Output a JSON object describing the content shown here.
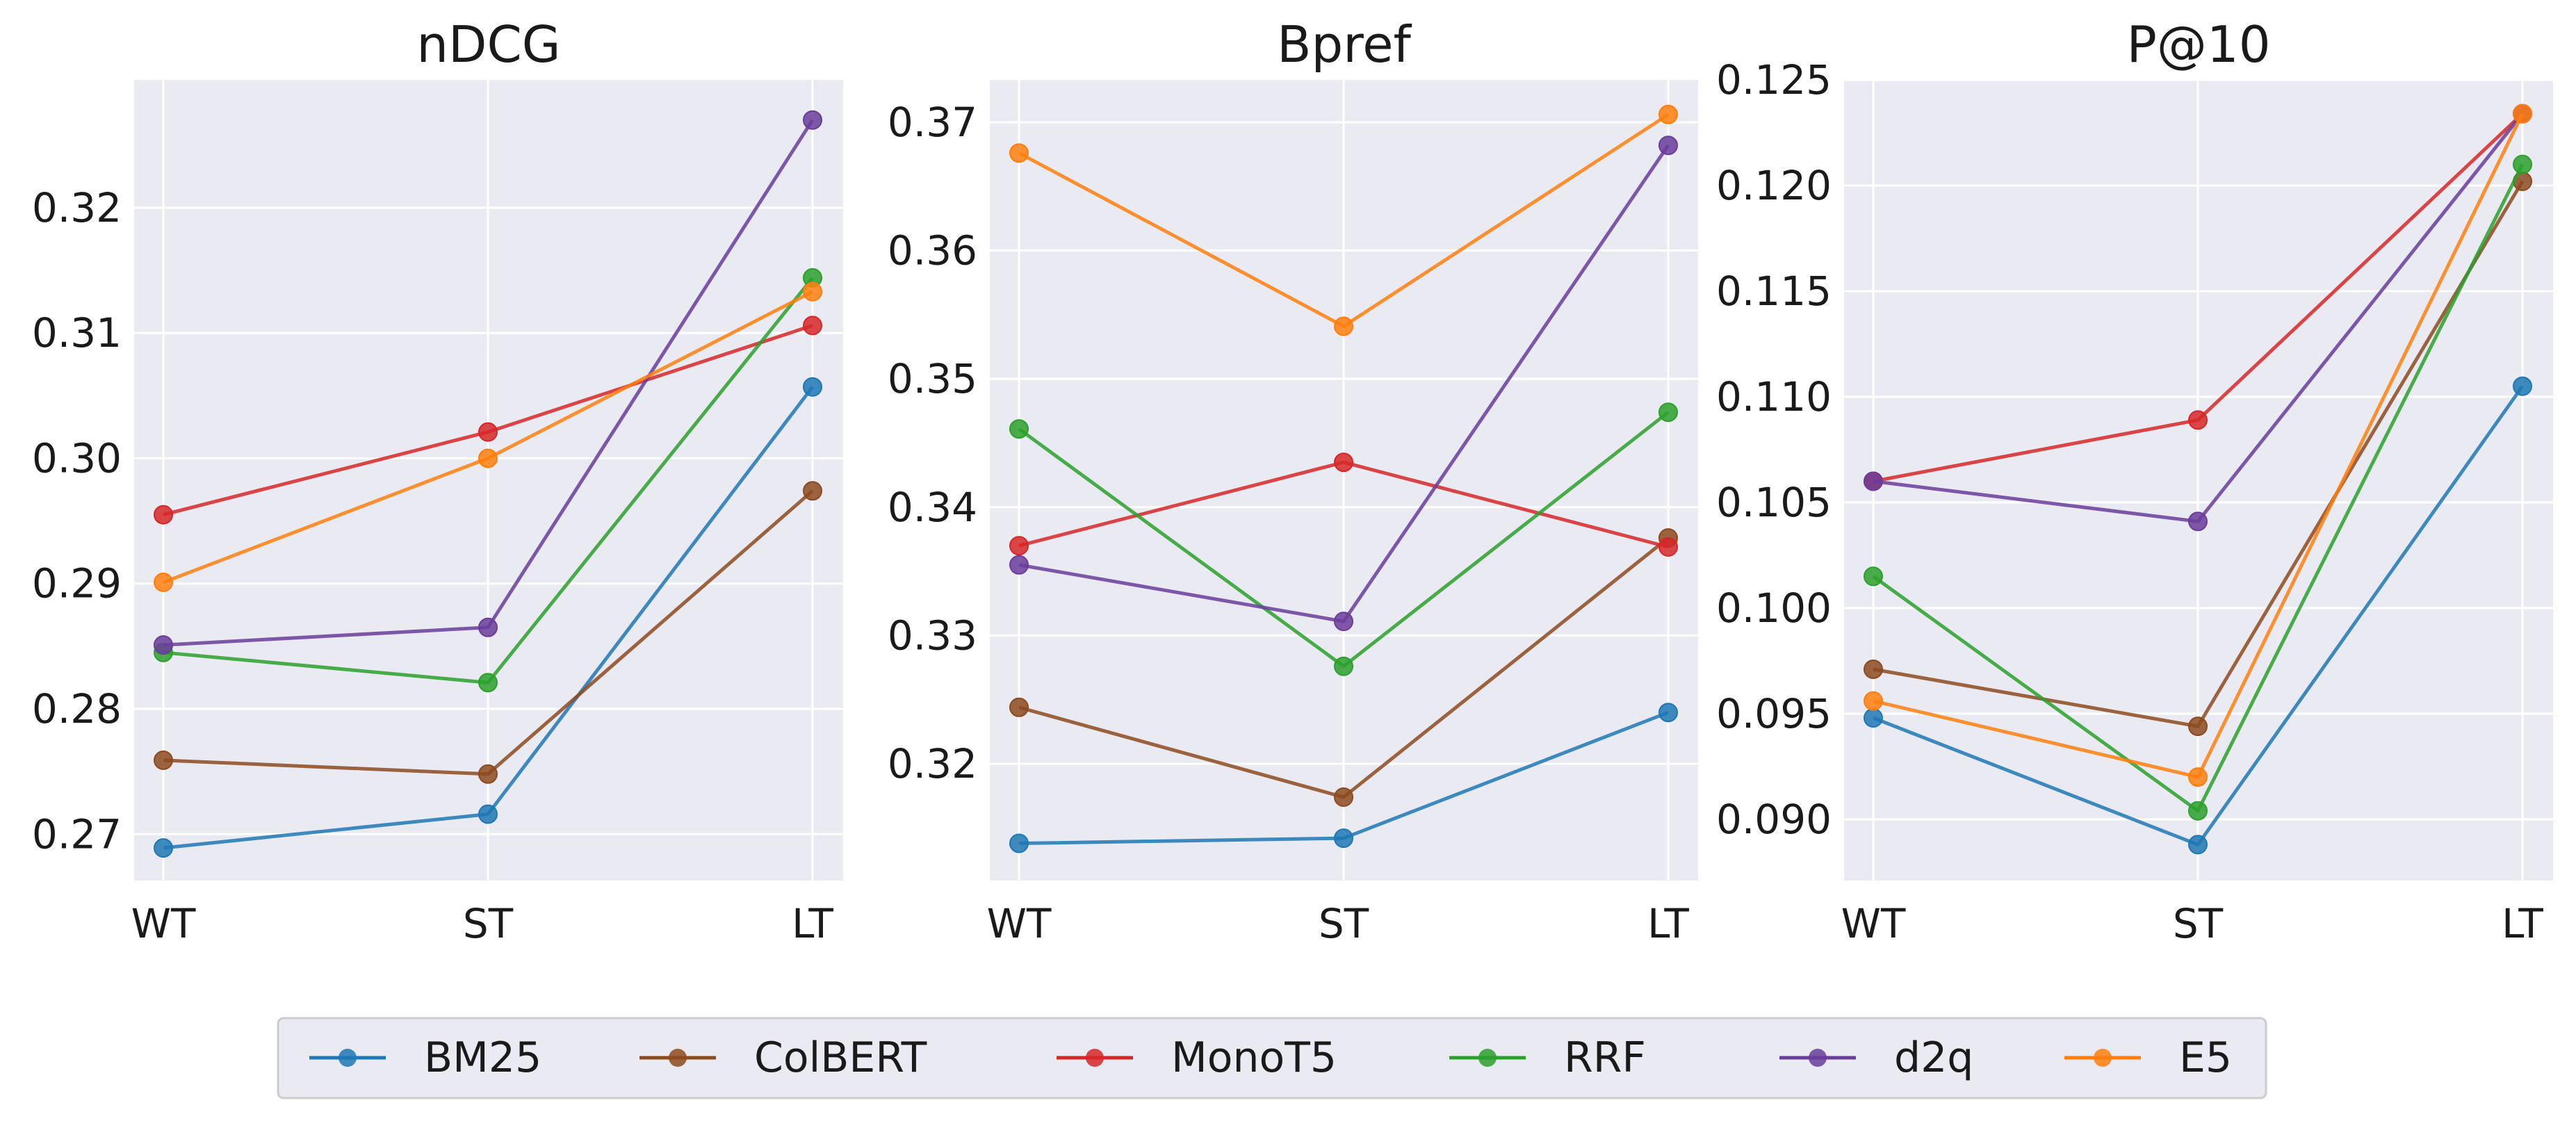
{
  "chart_data": [
    {
      "type": "line",
      "title": "nDCG",
      "categories": [
        "WT",
        "ST",
        "LT"
      ],
      "ylim": [
        0.2663,
        0.3302
      ],
      "yticks": [
        0.27,
        0.28,
        0.29,
        0.3,
        0.31,
        0.32
      ],
      "ytick_labels": [
        "0.27",
        "0.28",
        "0.29",
        "0.30",
        "0.31",
        "0.32"
      ],
      "series": [
        {
          "name": "BM25",
          "values": [
            0.2689,
            0.2716,
            0.3057
          ]
        },
        {
          "name": "ColBERT",
          "values": [
            0.2759,
            0.2748,
            0.2974
          ]
        },
        {
          "name": "MonoT5",
          "values": [
            0.2955,
            0.3021,
            0.3106
          ]
        },
        {
          "name": "RRF",
          "values": [
            0.2845,
            0.2821,
            0.3144
          ]
        },
        {
          "name": "d2q",
          "values": [
            0.2851,
            0.2865,
            0.327
          ]
        },
        {
          "name": "E5",
          "values": [
            0.2901,
            0.3,
            0.3133
          ]
        }
      ]
    },
    {
      "type": "line",
      "title": "Bpref",
      "categories": [
        "WT",
        "ST",
        "LT"
      ],
      "ylim": [
        0.3109,
        0.3733
      ],
      "yticks": [
        0.32,
        0.33,
        0.34,
        0.35,
        0.36,
        0.37
      ],
      "ytick_labels": [
        "0.32",
        "0.33",
        "0.34",
        "0.35",
        "0.36",
        "0.37"
      ],
      "series": [
        {
          "name": "BM25",
          "values": [
            0.3138,
            0.3142,
            0.324
          ]
        },
        {
          "name": "ColBERT",
          "values": [
            0.3244,
            0.3174,
            0.3376
          ]
        },
        {
          "name": "MonoT5",
          "values": [
            0.337,
            0.3435,
            0.3369
          ]
        },
        {
          "name": "RRF",
          "values": [
            0.3461,
            0.3276,
            0.3474
          ]
        },
        {
          "name": "d2q",
          "values": [
            0.3355,
            0.3311,
            0.3682
          ]
        },
        {
          "name": "E5",
          "values": [
            0.3676,
            0.3541,
            0.3706
          ]
        }
      ]
    },
    {
      "type": "line",
      "title": "P@10",
      "categories": [
        "WT",
        "ST",
        "LT"
      ],
      "ylim": [
        0.0871,
        0.125
      ],
      "yticks": [
        0.09,
        0.095,
        0.1,
        0.105,
        0.11,
        0.115,
        0.12,
        0.125
      ],
      "ytick_labels": [
        "0.090",
        "0.095",
        "0.100",
        "0.105",
        "0.110",
        "0.115",
        "0.120",
        "0.125"
      ],
      "series": [
        {
          "name": "BM25",
          "values": [
            0.0948,
            0.0888,
            0.1105
          ]
        },
        {
          "name": "ColBERT",
          "values": [
            0.0971,
            0.0944,
            0.1202
          ]
        },
        {
          "name": "MonoT5",
          "values": [
            0.106,
            0.1089,
            0.1234
          ]
        },
        {
          "name": "RRF",
          "values": [
            0.1015,
            0.0904,
            0.121
          ]
        },
        {
          "name": "d2q",
          "values": [
            0.106,
            0.1041,
            0.1234
          ]
        },
        {
          "name": "E5",
          "values": [
            0.0956,
            0.092,
            0.1234
          ]
        }
      ]
    }
  ],
  "legend": {
    "items": [
      {
        "name": "BM25",
        "color": "#1f77b4"
      },
      {
        "name": "ColBERT",
        "color": "#8c4a1f"
      },
      {
        "name": "MonoT5",
        "color": "#d62728"
      },
      {
        "name": "RRF",
        "color": "#2ca02c"
      },
      {
        "name": "d2q",
        "color": "#6a3d9a"
      },
      {
        "name": "E5",
        "color": "#ff7f0e"
      }
    ]
  },
  "colors": {
    "BM25": "#1f77b4",
    "ColBERT": "#8c4a1f",
    "MonoT5": "#d62728",
    "RRF": "#2ca02c",
    "d2q": "#6a3d9a",
    "E5": "#ff7f0e"
  }
}
